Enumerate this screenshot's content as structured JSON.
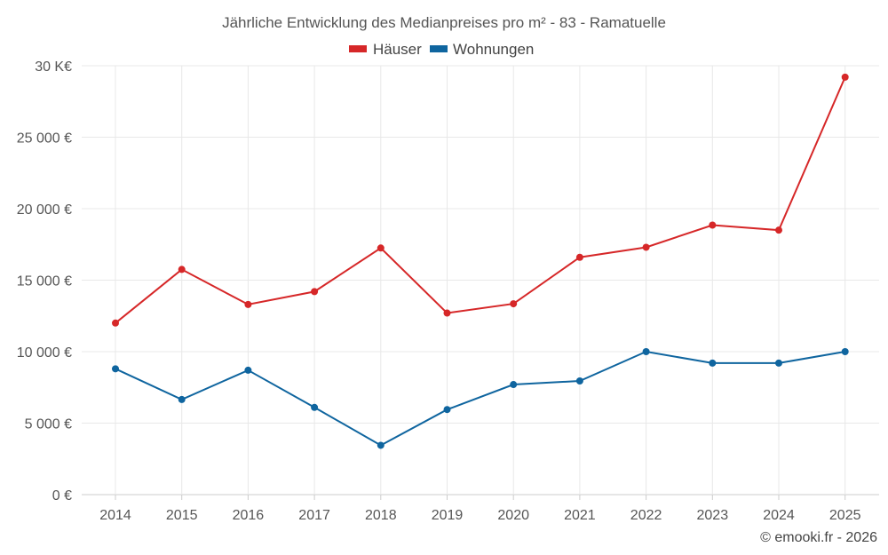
{
  "chart_data": {
    "type": "line",
    "title": "Jährliche Entwicklung des Medianpreises pro m² - 83 - Ramatuelle",
    "categories": [
      "2014",
      "2015",
      "2016",
      "2017",
      "2018",
      "2019",
      "2020",
      "2021",
      "2022",
      "2023",
      "2024",
      "2025"
    ],
    "series": [
      {
        "name": "Häuser",
        "color": "#d62728",
        "values": [
          12000,
          15750,
          13300,
          14200,
          17250,
          12700,
          13350,
          16600,
          17300,
          18850,
          18500,
          29200
        ]
      },
      {
        "name": "Wohnungen",
        "color": "#0f659f",
        "values": [
          8800,
          6650,
          8700,
          6100,
          3450,
          5950,
          7700,
          7950,
          10000,
          9200,
          9200,
          10000
        ]
      }
    ],
    "ylim": [
      0,
      30000
    ],
    "yticks": [
      0,
      5000,
      10000,
      15000,
      20000,
      25000,
      30000
    ],
    "ytick_labels": [
      "0 €",
      "5 000 €",
      "10 000 €",
      "15 000 €",
      "20 000 €",
      "25 000 €",
      "30 K€"
    ],
    "xlabel": "",
    "ylabel": "",
    "legend_position": "top-center",
    "grid": true
  },
  "credit": "© emooki.fr - 2026"
}
